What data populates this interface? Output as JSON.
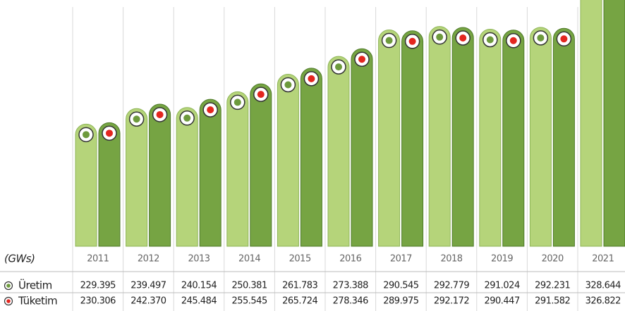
{
  "chart_data": {
    "type": "bar",
    "y_label": "(GWs)",
    "categories": [
      "2011",
      "2012",
      "2013",
      "2014",
      "2015",
      "2016",
      "2017",
      "2018",
      "2019",
      "2020",
      "2021"
    ],
    "series": [
      {
        "name": "Üretim",
        "color": "#b5d47a",
        "dot": "#6d9a3c",
        "values": [
          229.395,
          239.497,
          240.154,
          250.381,
          261.783,
          273.388,
          290.545,
          292.779,
          291.024,
          292.231,
          328.644
        ],
        "value_labels": [
          "229.395",
          "239.497",
          "240.154",
          "250.381",
          "261.783",
          "273.388",
          "290.545",
          "292.779",
          "291.024",
          "292.231",
          "328.644"
        ]
      },
      {
        "name": "Tüketim",
        "color": "#76a443",
        "dot": "#e3261f",
        "values": [
          230.306,
          242.37,
          245.484,
          255.545,
          265.724,
          278.346,
          289.975,
          292.172,
          290.447,
          291.582,
          326.822
        ],
        "value_labels": [
          "230.306",
          "242.370",
          "245.484",
          "255.545",
          "265.724",
          "278.346",
          "289.975",
          "292.172",
          "290.447",
          "291.582",
          "326.822"
        ]
      }
    ],
    "ylim": [
      150,
      310
    ]
  }
}
